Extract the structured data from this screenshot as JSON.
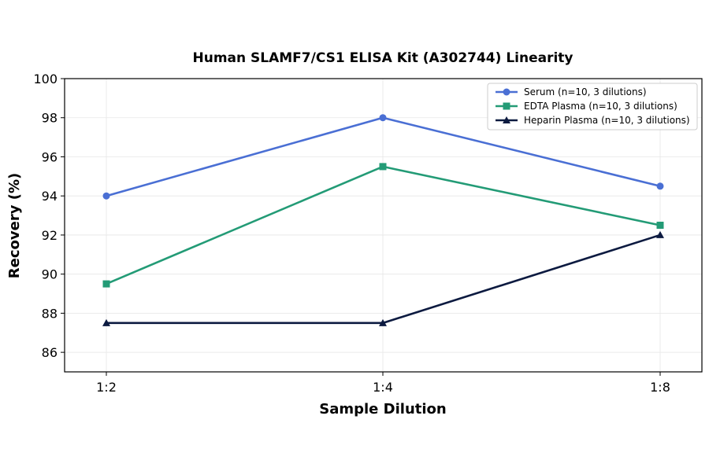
{
  "chart_data": {
    "type": "line",
    "title": "Human SLAMF7/CS1 ELISA Kit (A302744) Linearity",
    "xlabel": "Sample Dilution",
    "ylabel": "Recovery (%)",
    "categories": [
      "1:2",
      "1:4",
      "1:8"
    ],
    "ylim": [
      85,
      100
    ],
    "yticks": [
      86,
      88,
      90,
      92,
      94,
      96,
      98,
      100
    ],
    "grid": true,
    "legend_position": "top-right",
    "series": [
      {
        "name": "Serum (n=10, 3 dilutions)",
        "values": [
          94.0,
          98.0,
          94.5
        ],
        "color": "#4a6fd4",
        "marker": "circle"
      },
      {
        "name": "EDTA Plasma (n=10, 3 dilutions)",
        "values": [
          89.5,
          95.5,
          92.5
        ],
        "color": "#239b76",
        "marker": "square"
      },
      {
        "name": "Heparin Plasma (n=10, 3 dilutions)",
        "values": [
          87.5,
          87.5,
          92.0
        ],
        "color": "#0c1a40",
        "marker": "triangle"
      }
    ]
  }
}
